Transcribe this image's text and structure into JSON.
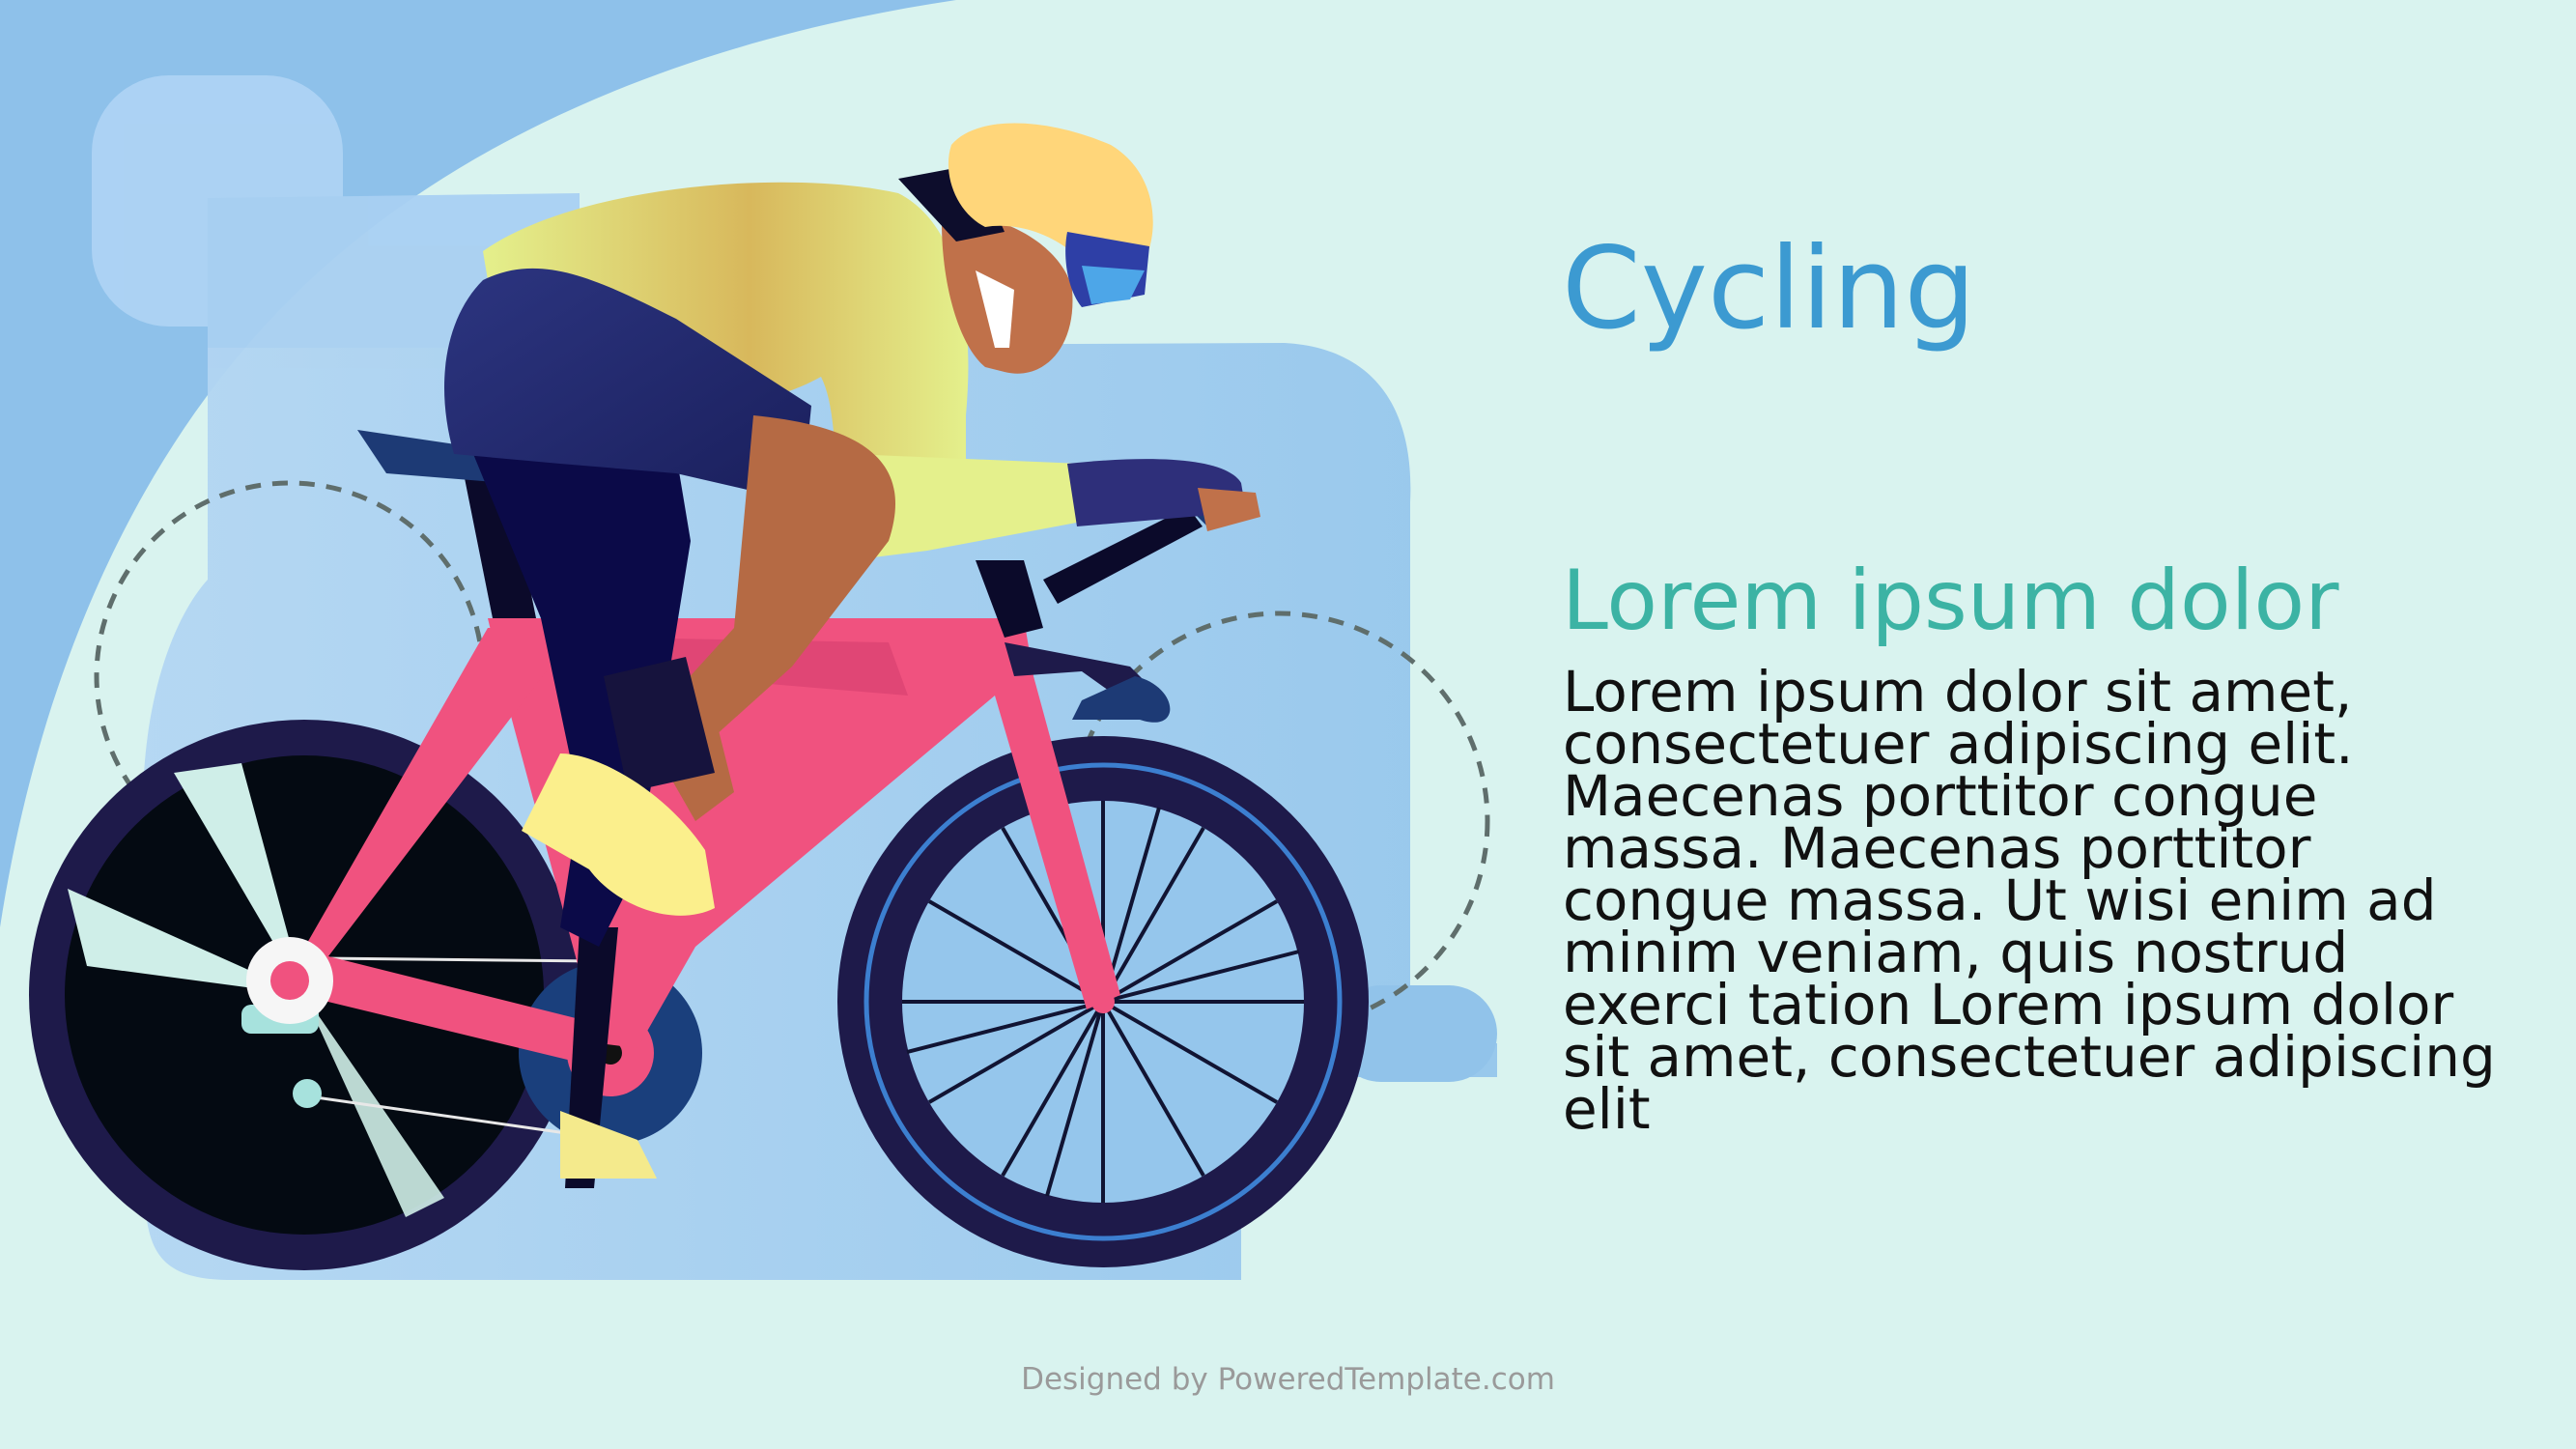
{
  "slide": {
    "title": "Cycling",
    "subtitle": "Lorem ipsum dolor",
    "body": "Lorem ipsum dolor sit amet, consectetuer adipiscing elit. Maecenas porttitor congue massa. Maecenas porttitor congue massa. Ut wisi enim ad minim veniam, quis nostrud exerci tation Lorem ipsum dolor sit amet, consectetuer adipiscing elit",
    "footer": "Designed by PoweredTemplate.com"
  },
  "colors": {
    "background": "#d9f3ef",
    "title": "#3c9ad1",
    "subtitle": "#3cb3a4",
    "frame": "#f0527f",
    "wheel": "#1e1a4a",
    "jersey": "#e4f08c",
    "shorts": "#2c3580",
    "helmet": "#ffd67a"
  },
  "illustration": {
    "icons": [
      "cyclist-illustration"
    ]
  }
}
